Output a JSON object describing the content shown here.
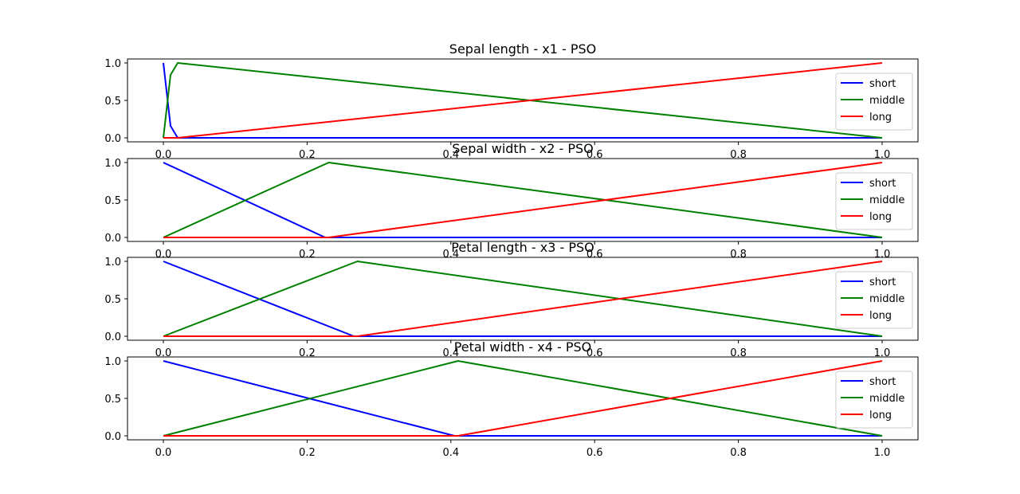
{
  "chart_data": [
    {
      "type": "line",
      "title": "Sepal length - x1 - PSO",
      "xlabel": "",
      "ylabel": "",
      "xlim": [
        0,
        1
      ],
      "ylim": [
        0,
        1
      ],
      "xticks": [
        "0.0",
        "0.2",
        "0.4",
        "0.6",
        "0.8",
        "1.0"
      ],
      "yticks": [
        "0.0",
        "0.5",
        "1.0"
      ],
      "grid": false,
      "legend": "center-right",
      "series": [
        {
          "name": "short",
          "color": "#0000ff",
          "x": [
            0,
            0.01,
            0.02,
            1
          ],
          "y": [
            1,
            0.16,
            0,
            0
          ]
        },
        {
          "name": "middle",
          "color": "#008000",
          "x": [
            0,
            0.01,
            0.02,
            1
          ],
          "y": [
            0,
            0.84,
            1,
            0
          ]
        },
        {
          "name": "long",
          "color": "#ff0000",
          "x": [
            0,
            0.02,
            1
          ],
          "y": [
            0,
            0,
            1
          ]
        }
      ]
    },
    {
      "type": "line",
      "title": "Sepal width - x2 - PSO",
      "xlabel": "",
      "ylabel": "",
      "xlim": [
        0,
        1
      ],
      "ylim": [
        0,
        1
      ],
      "xticks": [
        "0.0",
        "0.2",
        "0.4",
        "0.6",
        "0.8",
        "1.0"
      ],
      "yticks": [
        "0.0",
        "0.5",
        "1.0"
      ],
      "grid": false,
      "legend": "center-right",
      "series": [
        {
          "name": "short",
          "color": "#0000ff",
          "x": [
            0,
            0.225,
            1
          ],
          "y": [
            1,
            0,
            0
          ]
        },
        {
          "name": "middle",
          "color": "#008000",
          "x": [
            0,
            0.23,
            1
          ],
          "y": [
            0,
            1,
            0
          ]
        },
        {
          "name": "long",
          "color": "#ff0000",
          "x": [
            0,
            0.23,
            1
          ],
          "y": [
            0,
            0,
            1
          ]
        }
      ]
    },
    {
      "type": "line",
      "title": "Petal length - x3 - PSO",
      "xlabel": "",
      "ylabel": "",
      "xlim": [
        0,
        1
      ],
      "ylim": [
        0,
        1
      ],
      "xticks": [
        "0.0",
        "0.2",
        "0.4",
        "0.6",
        "0.8",
        "1.0"
      ],
      "yticks": [
        "0.0",
        "0.5",
        "1.0"
      ],
      "grid": false,
      "legend": "center-right",
      "series": [
        {
          "name": "short",
          "color": "#0000ff",
          "x": [
            0,
            0.265,
            1
          ],
          "y": [
            1,
            0,
            0
          ]
        },
        {
          "name": "middle",
          "color": "#008000",
          "x": [
            0,
            0.27,
            1
          ],
          "y": [
            0,
            1,
            0
          ]
        },
        {
          "name": "long",
          "color": "#ff0000",
          "x": [
            0,
            0.27,
            1
          ],
          "y": [
            0,
            0,
            1
          ]
        }
      ]
    },
    {
      "type": "line",
      "title": "Petal width - x4 - PSO",
      "xlabel": "",
      "ylabel": "",
      "xlim": [
        0,
        1
      ],
      "ylim": [
        0,
        1
      ],
      "xticks": [
        "0.0",
        "0.2",
        "0.4",
        "0.6",
        "0.8",
        "1.0"
      ],
      "yticks": [
        "0.0",
        "0.5",
        "1.0"
      ],
      "grid": false,
      "legend": "center-right",
      "series": [
        {
          "name": "short",
          "color": "#0000ff",
          "x": [
            0,
            0.405,
            1
          ],
          "y": [
            1,
            0,
            0
          ]
        },
        {
          "name": "middle",
          "color": "#008000",
          "x": [
            0,
            0.41,
            1
          ],
          "y": [
            0,
            1,
            0
          ]
        },
        {
          "name": "long",
          "color": "#ff0000",
          "x": [
            0,
            0.41,
            1
          ],
          "y": [
            0,
            0,
            1
          ]
        }
      ]
    }
  ]
}
